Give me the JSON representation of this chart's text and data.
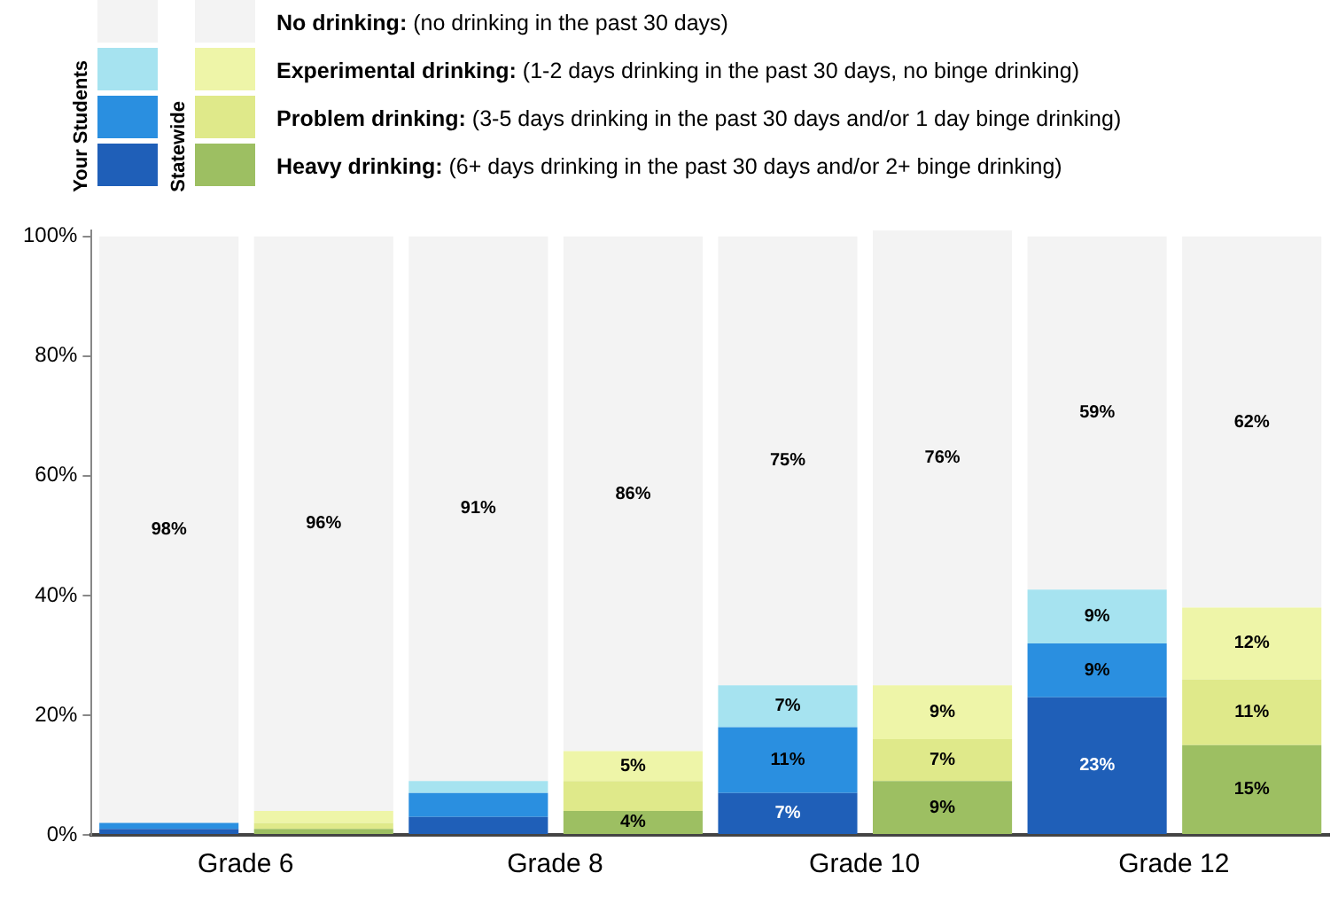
{
  "chart_data": {
    "type": "bar",
    "stacked": true,
    "categories": [
      "Grade 6",
      null,
      "Grade 8",
      null,
      "Grade 10",
      null,
      "Grade 12",
      null
    ],
    "series": [
      {
        "name": "Heavy drinking: (6+ days drinking in the past 30 days and/or 2+ binge drinking)",
        "colors": [
          "#1f5fb8",
          "#9dbf62",
          "#1f5fb8",
          "#9dbf62",
          "#1f5fb8",
          "#9dbf62",
          "#1f5fb8",
          "#9dbf62"
        ],
        "values": [
          1,
          1,
          3,
          4,
          7,
          9,
          23,
          15
        ],
        "value_labels": [
          null,
          null,
          null,
          "4%",
          "7%",
          "9%",
          "23%",
          "15%"
        ]
      },
      {
        "name": "Problem drinking: (3-5 days drinking in the past 30 days and/or 1 day binge drinking)",
        "colors": [
          "#2a8fe0",
          "#dfe98a",
          "#2a8fe0",
          "#dfe98a",
          "#2a8fe0",
          "#dfe98a",
          "#2a8fe0",
          "#dfe98a"
        ],
        "values": [
          1,
          1,
          4,
          5,
          11,
          7,
          9,
          11
        ],
        "value_labels": [
          null,
          null,
          null,
          null,
          "11%",
          "7%",
          "9%",
          "11%"
        ]
      },
      {
        "name": "Experimental drinking: (1-2 days drinking in the past 30 days, no binge drinking)",
        "colors": [
          "#a6e3f0",
          "#eef5a8",
          "#a6e3f0",
          "#eef5a8",
          "#a6e3f0",
          "#eef5a8",
          "#a6e3f0",
          "#eef5a8"
        ],
        "values": [
          0,
          2,
          2,
          5,
          7,
          9,
          9,
          12
        ],
        "value_labels": [
          null,
          null,
          null,
          "5%",
          "7%",
          "9%",
          "9%",
          "12%"
        ]
      },
      {
        "name": "No drinking: (no drinking in the past 30 days)",
        "color": "#f3f3f3",
        "values": [
          98,
          96,
          91,
          86,
          75,
          76,
          59,
          62
        ],
        "value_labels": [
          "98%",
          "96%",
          "91%",
          "86%",
          "75%",
          "76%",
          "59%",
          "62%"
        ]
      }
    ],
    "annotations": [
      "Your Students",
      "Statewide"
    ],
    "ylim": [
      0,
      101
    ],
    "yticks": [
      {
        "value": 0,
        "label": "0%"
      },
      {
        "value": 20,
        "label": "20%"
      },
      {
        "value": 40,
        "label": "40%"
      },
      {
        "value": 60,
        "label": "60%"
      },
      {
        "value": 80,
        "label": "80%"
      },
      {
        "value": 100,
        "label": "100%"
      }
    ],
    "grid": false,
    "legend": "top left"
  }
}
